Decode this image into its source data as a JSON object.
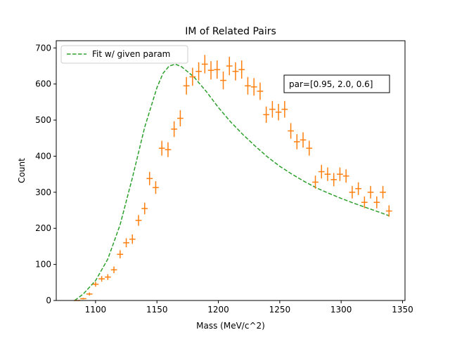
{
  "chart_data": {
    "type": "scatter",
    "title": "IM of Related Pairs",
    "xlabel": "Mass (MeV/c^2)",
    "ylabel": "Count",
    "xlim": [
      1068,
      1352
    ],
    "ylim": [
      0,
      720
    ],
    "x_ticks": [
      1100,
      1150,
      1200,
      1250,
      1300,
      1350
    ],
    "y_ticks": [
      0,
      100,
      200,
      300,
      400,
      500,
      600,
      700
    ],
    "grid": false,
    "legend": {
      "placement": "upper-left",
      "entries": [
        "Fit w/ given param"
      ]
    },
    "annotation": "par=[0.95, 2.0, 0.6]",
    "colors": {
      "fit": "#2ca02c",
      "data": "#ff7f0e"
    },
    "series": [
      {
        "name": "Fit w/ given param",
        "kind": "dashed-line",
        "x": [
          1083,
          1090,
          1100,
          1110,
          1120,
          1130,
          1140,
          1150,
          1155,
          1160,
          1165,
          1170,
          1180,
          1190,
          1200,
          1210,
          1220,
          1230,
          1240,
          1250,
          1260,
          1270,
          1280,
          1290,
          1300,
          1310,
          1320,
          1330,
          1339
        ],
        "y": [
          0,
          18,
          55,
          115,
          210,
          340,
          480,
          590,
          630,
          650,
          655,
          648,
          620,
          580,
          535,
          495,
          460,
          428,
          398,
          372,
          350,
          330,
          312,
          297,
          283,
          270,
          258,
          246,
          235
        ]
      },
      {
        "kind": "errorbar",
        "x": [
          1085,
          1090,
          1095,
          1100,
          1105,
          1110,
          1115,
          1120,
          1125,
          1130,
          1135,
          1140,
          1144,
          1149,
          1154,
          1159,
          1164,
          1169,
          1174,
          1179,
          1184,
          1189,
          1194,
          1199,
          1204,
          1209,
          1214,
          1219,
          1224,
          1229,
          1234,
          1239,
          1244,
          1249,
          1254,
          1259,
          1264,
          1269,
          1274,
          1279,
          1284,
          1289,
          1294,
          1299,
          1304,
          1309,
          1314,
          1319,
          1324,
          1329,
          1334,
          1339
        ],
        "y": [
          0,
          5,
          18,
          45,
          60,
          65,
          85,
          128,
          160,
          170,
          222,
          255,
          338,
          313,
          422,
          418,
          475,
          505,
          595,
          620,
          635,
          655,
          638,
          640,
          610,
          650,
          635,
          640,
          595,
          592,
          580,
          515,
          530,
          522,
          530,
          470,
          440,
          445,
          422,
          328,
          357,
          350,
          335,
          350,
          345,
          300,
          310,
          272,
          300,
          272,
          300,
          248
        ],
        "xerr": 2.5
      }
    ]
  }
}
